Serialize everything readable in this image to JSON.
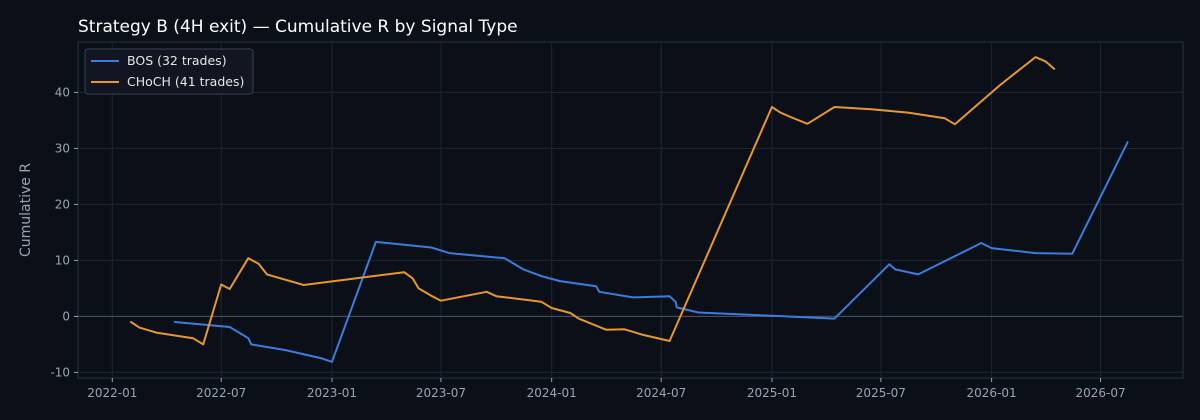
{
  "chart_data": {
    "type": "line",
    "title": "Strategy B (4H exit) — Cumulative R by Signal Type",
    "xlabel": "",
    "ylabel": "Cumulative R",
    "xlim": [
      "2021-11-05",
      "2026-11-15"
    ],
    "ylim": [
      -11,
      49
    ],
    "x_ticks": [
      "2022-01",
      "2022-07",
      "2023-01",
      "2023-07",
      "2024-01",
      "2024-07",
      "2025-01",
      "2025-07",
      "2026-01",
      "2026-07"
    ],
    "y_ticks": [
      -10,
      0,
      10,
      20,
      30,
      40
    ],
    "grid": true,
    "zero_line": true,
    "legend_position": "top-left",
    "series": [
      {
        "name": "BOS (32 trades)",
        "color": "#3b7ddd",
        "points": [
          [
            "2022-04-15",
            -1.0
          ],
          [
            "2022-07-15",
            -1.9
          ],
          [
            "2022-08-15",
            -3.9
          ],
          [
            "2022-08-20",
            -5.0
          ],
          [
            "2022-10-15",
            -6.0
          ],
          [
            "2022-12-15",
            -7.5
          ],
          [
            "2023-01-01",
            -8.1
          ],
          [
            "2023-03-15",
            13.3
          ],
          [
            "2023-06-15",
            12.3
          ],
          [
            "2023-07-15",
            11.3
          ],
          [
            "2023-10-15",
            10.4
          ],
          [
            "2023-11-15",
            8.4
          ],
          [
            "2023-12-15",
            7.2
          ],
          [
            "2024-01-15",
            6.3
          ],
          [
            "2024-03-15",
            5.4
          ],
          [
            "2024-03-20",
            4.4
          ],
          [
            "2024-05-15",
            3.4
          ],
          [
            "2024-07-15",
            3.6
          ],
          [
            "2024-07-25",
            2.6
          ],
          [
            "2024-07-27",
            1.6
          ],
          [
            "2024-09-01",
            0.7
          ],
          [
            "2025-01-01",
            0.1
          ],
          [
            "2025-04-15",
            -0.4
          ],
          [
            "2025-07-15",
            9.3
          ],
          [
            "2025-07-25",
            8.4
          ],
          [
            "2025-09-01",
            7.5
          ],
          [
            "2025-12-15",
            13.1
          ],
          [
            "2026-01-01",
            12.2
          ],
          [
            "2026-03-15",
            11.3
          ],
          [
            "2026-05-15",
            11.2
          ],
          [
            "2026-08-15",
            31.1
          ]
        ]
      },
      {
        "name": "CHoCH (41 trades)",
        "color": "#e8972a",
        "points": [
          [
            "2022-02-01",
            -1.0
          ],
          [
            "2022-02-15",
            -2.0
          ],
          [
            "2022-03-15",
            -2.9
          ],
          [
            "2022-05-15",
            -3.9
          ],
          [
            "2022-06-01",
            -5.0
          ],
          [
            "2022-07-01",
            5.7
          ],
          [
            "2022-07-15",
            4.9
          ],
          [
            "2022-08-15",
            10.4
          ],
          [
            "2022-09-01",
            9.4
          ],
          [
            "2022-09-15",
            7.5
          ],
          [
            "2022-11-15",
            5.6
          ],
          [
            "2023-05-01",
            7.9
          ],
          [
            "2023-05-15",
            6.8
          ],
          [
            "2023-05-25",
            5.0
          ],
          [
            "2023-06-15",
            3.7
          ],
          [
            "2023-07-01",
            2.8
          ],
          [
            "2023-09-15",
            4.4
          ],
          [
            "2023-10-01",
            3.6
          ],
          [
            "2023-12-15",
            2.6
          ],
          [
            "2024-01-01",
            1.5
          ],
          [
            "2024-02-01",
            0.6
          ],
          [
            "2024-02-15",
            -0.4
          ],
          [
            "2024-04-01",
            -2.4
          ],
          [
            "2024-05-01",
            -2.3
          ],
          [
            "2024-06-01",
            -3.3
          ],
          [
            "2024-07-15",
            -4.4
          ],
          [
            "2025-01-01",
            37.4
          ],
          [
            "2025-01-15",
            36.4
          ],
          [
            "2025-02-01",
            35.6
          ],
          [
            "2025-03-01",
            34.4
          ],
          [
            "2025-04-15",
            37.4
          ],
          [
            "2025-06-15",
            37.0
          ],
          [
            "2025-08-15",
            36.4
          ],
          [
            "2025-10-15",
            35.4
          ],
          [
            "2025-11-01",
            34.3
          ],
          [
            "2026-01-15",
            41.3
          ],
          [
            "2026-03-15",
            46.3
          ],
          [
            "2026-04-01",
            45.5
          ],
          [
            "2026-04-15",
            44.2
          ]
        ]
      }
    ]
  }
}
